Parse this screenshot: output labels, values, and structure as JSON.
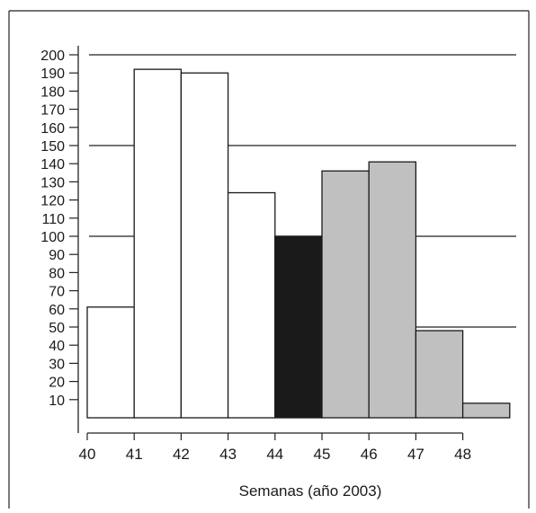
{
  "chart_data": {
    "type": "bar",
    "xlabel": "Semanas (año 2003)",
    "ylabel": "",
    "title": "",
    "x_ticks": [
      "40",
      "41",
      "42",
      "43",
      "44",
      "45",
      "46",
      "47",
      "48"
    ],
    "y_ticks": [
      10,
      20,
      30,
      40,
      50,
      60,
      70,
      80,
      90,
      100,
      110,
      120,
      130,
      140,
      150,
      160,
      170,
      180,
      190,
      200
    ],
    "ylim": [
      0,
      200
    ],
    "xlim": [
      40,
      48
    ],
    "gridlines_y": [
      50,
      100,
      150,
      200
    ],
    "bars": [
      {
        "x_start": 40,
        "x_end": 41,
        "value": 61,
        "color": "#ffffff"
      },
      {
        "x_start": 41,
        "x_end": 42,
        "value": 192,
        "color": "#ffffff"
      },
      {
        "x_start": 42,
        "x_end": 43,
        "value": 190,
        "color": "#ffffff"
      },
      {
        "x_start": 43,
        "x_end": 44,
        "value": 124,
        "color": "#ffffff"
      },
      {
        "x_start": 44,
        "x_end": 45,
        "value": 100,
        "color": "#1a1a1a"
      },
      {
        "x_start": 45,
        "x_end": 46,
        "value": 136,
        "color": "#c0c0c0"
      },
      {
        "x_start": 46,
        "x_end": 47,
        "value": 141,
        "color": "#c0c0c0"
      },
      {
        "x_start": 47,
        "x_end": 48,
        "value": 48,
        "color": "#c0c0c0"
      },
      {
        "x_start": 48,
        "x_end": 49,
        "value": 8,
        "color": "#c0c0c0"
      }
    ]
  }
}
